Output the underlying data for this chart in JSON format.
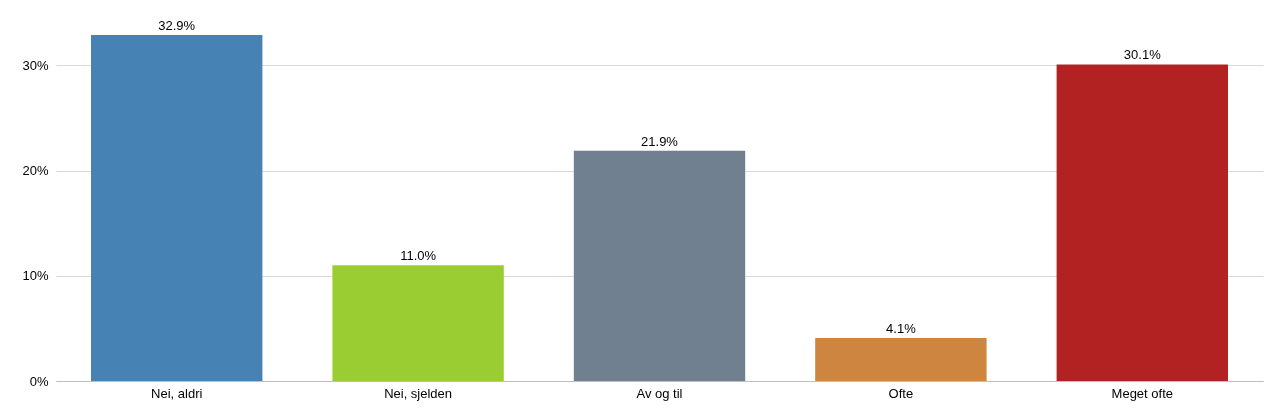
{
  "chart_data": {
    "type": "bar",
    "categories": [
      "Nei, aldri",
      "Nei, sjelden",
      "Av og til",
      "Ofte",
      "Meget ofte"
    ],
    "values": [
      32.9,
      11.0,
      21.9,
      4.1,
      30.1
    ],
    "colors": [
      "#4682b4",
      "#9acd32",
      "#708090",
      "#cd853f",
      "#b22222"
    ],
    "value_labels": [
      "32.9%",
      "11.0%",
      "21.9%",
      "4.1%",
      "30.1%"
    ],
    "yticks": [
      {
        "value": 0,
        "label": "0%"
      },
      {
        "value": 10,
        "label": "10%"
      },
      {
        "value": 20,
        "label": "20%"
      },
      {
        "value": 30,
        "label": "30%"
      }
    ],
    "ylim": [
      0,
      32.9
    ],
    "grid": "y"
  }
}
